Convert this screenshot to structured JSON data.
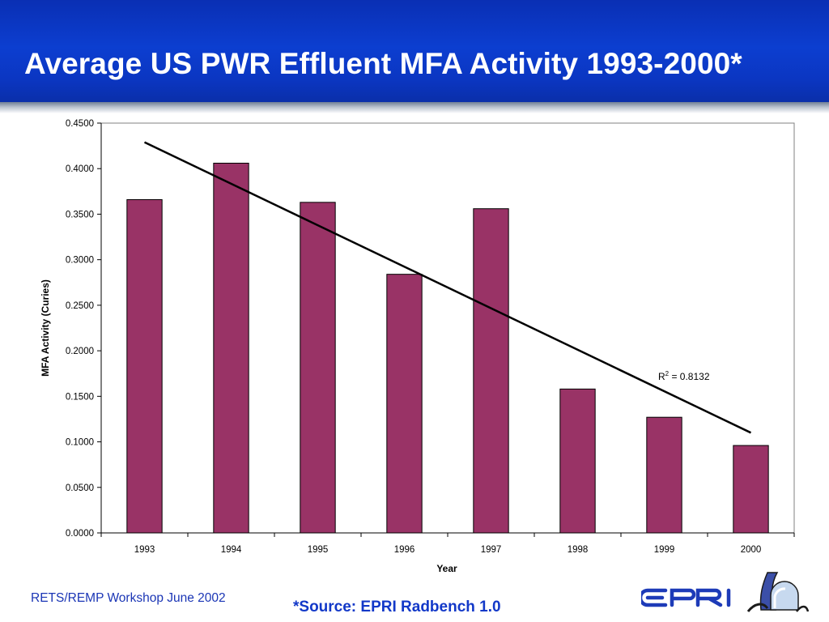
{
  "header": {
    "title": "Average US PWR Effluent MFA Activity 1993-2000*"
  },
  "chart_data": {
    "type": "bar",
    "categories": [
      "1993",
      "1994",
      "1995",
      "1996",
      "1997",
      "1998",
      "1999",
      "2000"
    ],
    "values": [
      0.366,
      0.406,
      0.363,
      0.284,
      0.356,
      0.158,
      0.127,
      0.096
    ],
    "ylim": [
      0,
      0.45
    ],
    "yticks": [
      "0.0000",
      "0.0500",
      "0.1000",
      "0.1500",
      "0.2000",
      "0.2500",
      "0.3000",
      "0.3500",
      "0.4000",
      "0.4500"
    ],
    "xlabel": "Year",
    "ylabel": "MFA Activity (Curies)",
    "bar_color": "#993366",
    "gridlines": false,
    "trendline": {
      "type": "linear",
      "start": {
        "x": "1993",
        "y": 0.429
      },
      "end": {
        "x": "2000",
        "y": 0.11
      },
      "r2_label": "R",
      "r2_superscript": "2",
      "r2_value": " = 0.8132"
    }
  },
  "footer": {
    "workshop": "RETS/REMP Workshop June 2002",
    "source": "*Source: EPRI Radbench 1.0"
  },
  "logo": {
    "text": "EPRI",
    "color": "#1d3bb8"
  }
}
